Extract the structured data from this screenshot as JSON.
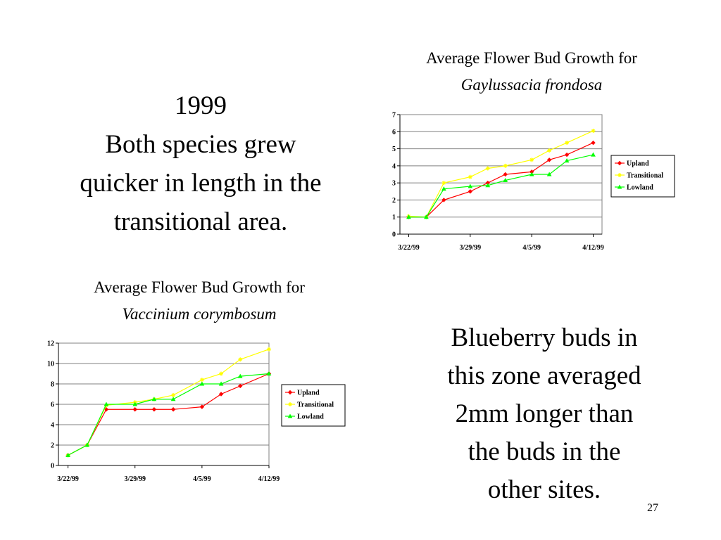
{
  "slide": {
    "left_text": [
      "1999",
      "Both  species grew",
      "quicker in length in the",
      "transitional area."
    ],
    "right_text": [
      "Blueberry buds in",
      "this zone averaged",
      "2mm longer than",
      "the buds in the",
      "other sites."
    ],
    "page_number": "27"
  },
  "chart_data": [
    {
      "type": "line",
      "title": "Average Flower Bud Growth for",
      "subtitle": "Gaylussacia frondosa",
      "x": [
        "3/22/99",
        "3/24/99",
        "3/26/99",
        "3/29/99",
        "3/31/99",
        "4/2/99",
        "4/5/99",
        "4/7/99",
        "4/9/99",
        "4/12/99"
      ],
      "xlim": [
        "3/21/99",
        "4/13/99"
      ],
      "xticks": [
        "3/22/99",
        "3/29/99",
        "4/5/99",
        "4/12/99"
      ],
      "ylim": [
        0,
        7
      ],
      "yticks": [
        0,
        1,
        2,
        3,
        4,
        5,
        6,
        7
      ],
      "grid": true,
      "legend": "right",
      "series": [
        {
          "name": "Upland",
          "color": "#ff0000",
          "marker": "diamond",
          "values": [
            1,
            1,
            2,
            2.5,
            3,
            3.5,
            3.65,
            4.35,
            4.65,
            5.35
          ]
        },
        {
          "name": "Transitional",
          "color": "#ffff00",
          "marker": "star",
          "values": [
            1.05,
            1,
            3,
            3.35,
            3.85,
            4,
            4.35,
            4.9,
            5.35,
            6.05
          ]
        },
        {
          "name": "Lowland",
          "color": "#00ff00",
          "marker": "triangle",
          "values": [
            1,
            1,
            2.65,
            2.8,
            2.85,
            3.15,
            3.5,
            3.5,
            4.3,
            4.65
          ]
        }
      ]
    },
    {
      "type": "line",
      "title": "Average Flower Bud Growth for",
      "subtitle": "Vaccinium corymbosum",
      "x": [
        "3/22/99",
        "3/24/99",
        "3/26/99",
        "3/29/99",
        "3/31/99",
        "4/2/99",
        "4/5/99",
        "4/7/99",
        "4/9/99",
        "4/12/99"
      ],
      "xlim": [
        "3/21/99",
        "4/12/99"
      ],
      "xticks": [
        "3/22/99",
        "3/29/99",
        "4/5/99",
        "4/12/99"
      ],
      "ylim": [
        0,
        12
      ],
      "yticks": [
        0,
        2,
        4,
        6,
        8,
        10,
        12
      ],
      "grid": true,
      "legend": "right",
      "series": [
        {
          "name": "Upland",
          "color": "#ff0000",
          "marker": "diamond",
          "values": [
            1,
            2,
            5.5,
            5.5,
            5.5,
            5.5,
            5.75,
            7,
            7.8,
            9
          ]
        },
        {
          "name": "Transitional",
          "color": "#ffff00",
          "marker": "star",
          "values": [
            1,
            2,
            5.9,
            6.2,
            6.5,
            6.9,
            8.4,
            9,
            10.4,
            11.4
          ]
        },
        {
          "name": "Lowland",
          "color": "#00ff00",
          "marker": "triangle",
          "values": [
            1,
            2,
            6,
            6,
            6.5,
            6.5,
            8,
            8,
            8.75,
            9
          ]
        }
      ]
    }
  ]
}
